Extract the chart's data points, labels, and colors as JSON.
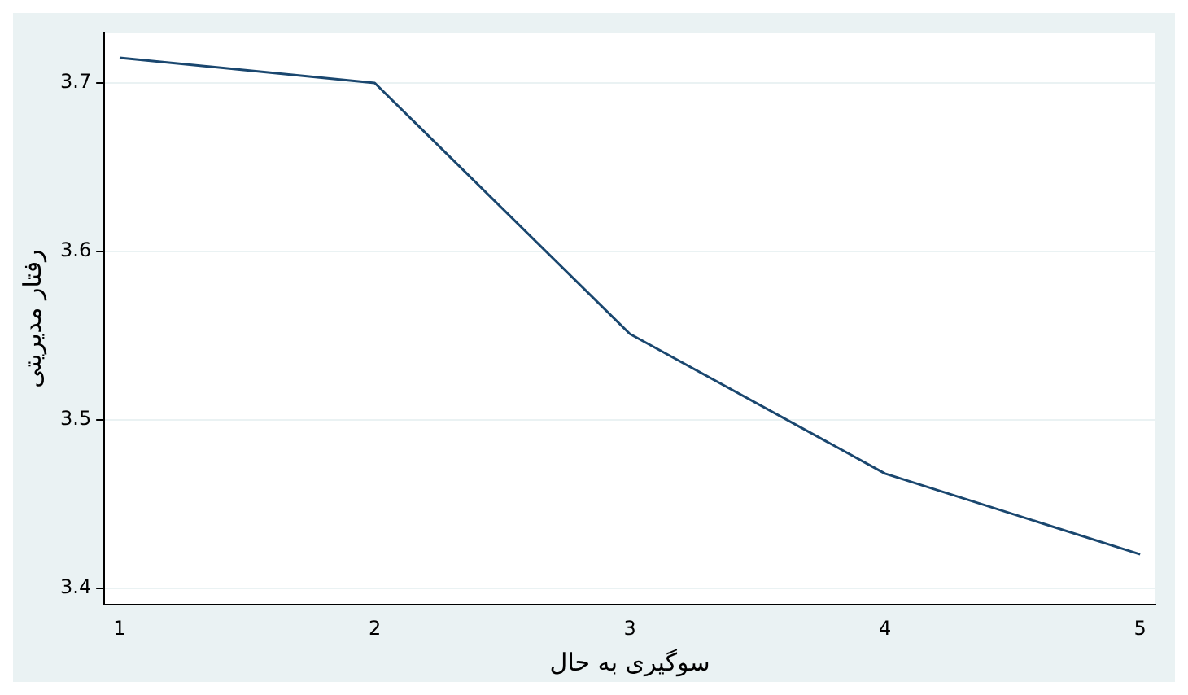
{
  "chart_data": {
    "type": "line",
    "xlabel": "سوگیری به حال",
    "ylabel": "رفتار مدیریتی",
    "x": [
      1,
      2,
      3,
      4,
      5
    ],
    "series": [
      {
        "color": "#1a476f",
        "values": [
          3.715,
          3.7,
          3.551,
          3.468,
          3.42
        ]
      }
    ],
    "xlim": [
      0.94,
      5.06
    ],
    "xticks": [
      1,
      2,
      3,
      4,
      5
    ],
    "ylim": [
      3.39,
      3.73
    ],
    "yticks": [
      3.4,
      3.5,
      3.6,
      3.7
    ],
    "grid": "y",
    "legend": false,
    "marker": "none",
    "line_style": "solid"
  }
}
